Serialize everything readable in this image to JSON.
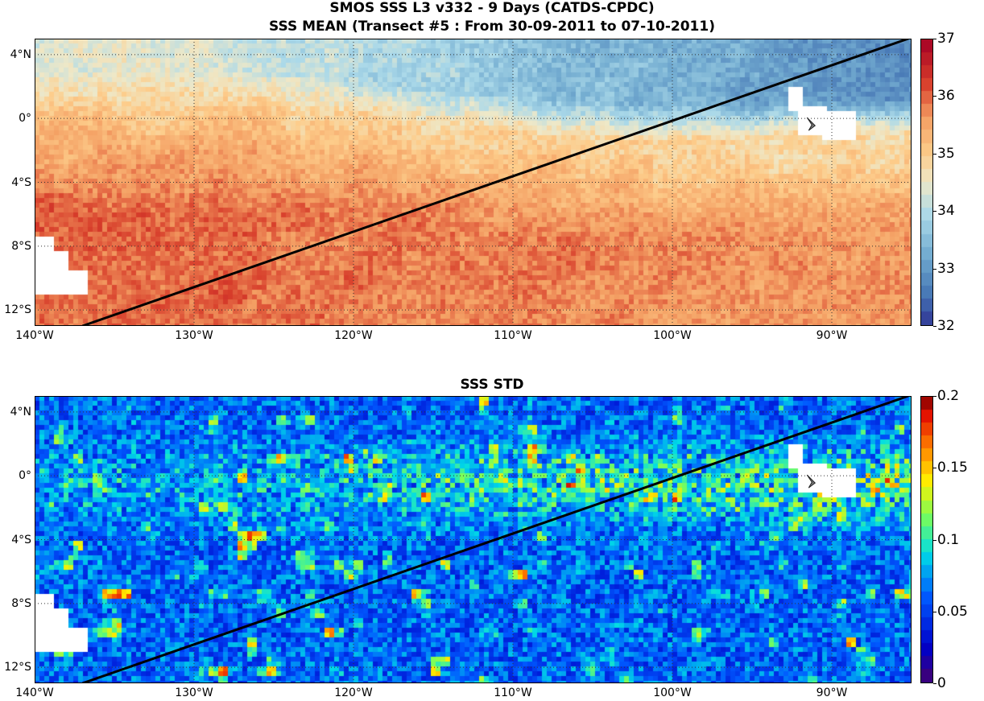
{
  "header": {
    "title_line1": "SMOS SSS L3 v332 - 9 Days (CATDS-CPDC)",
    "title_line2": "SSS MEAN (Transect #5 : From 30-09-2011 to 07-10-2011)"
  },
  "panels": [
    {
      "id": "mean",
      "title": "",
      "colormap": "RdYlBu_r",
      "clim": [
        32,
        37
      ],
      "colorbar_ticks": [
        "37",
        "36",
        "35",
        "34",
        "33",
        "32"
      ],
      "colorbar_values": [
        37,
        36,
        35,
        34,
        33,
        32
      ]
    },
    {
      "id": "std",
      "title": "SSS STD",
      "colormap": "jet",
      "clim": [
        0,
        0.2
      ],
      "colorbar_ticks": [
        "0.2",
        "0.15",
        "0.1",
        "0.05",
        "0"
      ],
      "colorbar_values": [
        0.2,
        0.15,
        0.1,
        0.05,
        0
      ]
    }
  ],
  "map": {
    "lon_range": [
      -140,
      -85
    ],
    "lat_range": [
      -13,
      5
    ],
    "lat_ticks": [
      {
        "value": 4,
        "label": "4°N"
      },
      {
        "value": 0,
        "label": "0°"
      },
      {
        "value": -4,
        "label": "4°S"
      },
      {
        "value": -8,
        "label": "8°S"
      },
      {
        "value": -12,
        "label": "12°S"
      }
    ],
    "lon_ticks": [
      {
        "value": -140,
        "label": "140°W"
      },
      {
        "value": -130,
        "label": "130°W"
      },
      {
        "value": -120,
        "label": "120°W"
      },
      {
        "value": -110,
        "label": "110°W"
      },
      {
        "value": -100,
        "label": "100°W"
      },
      {
        "value": -90,
        "label": "90°W"
      }
    ],
    "transect": {
      "start": [
        -137,
        -13
      ],
      "end": [
        -85.2,
        5
      ]
    }
  }
}
